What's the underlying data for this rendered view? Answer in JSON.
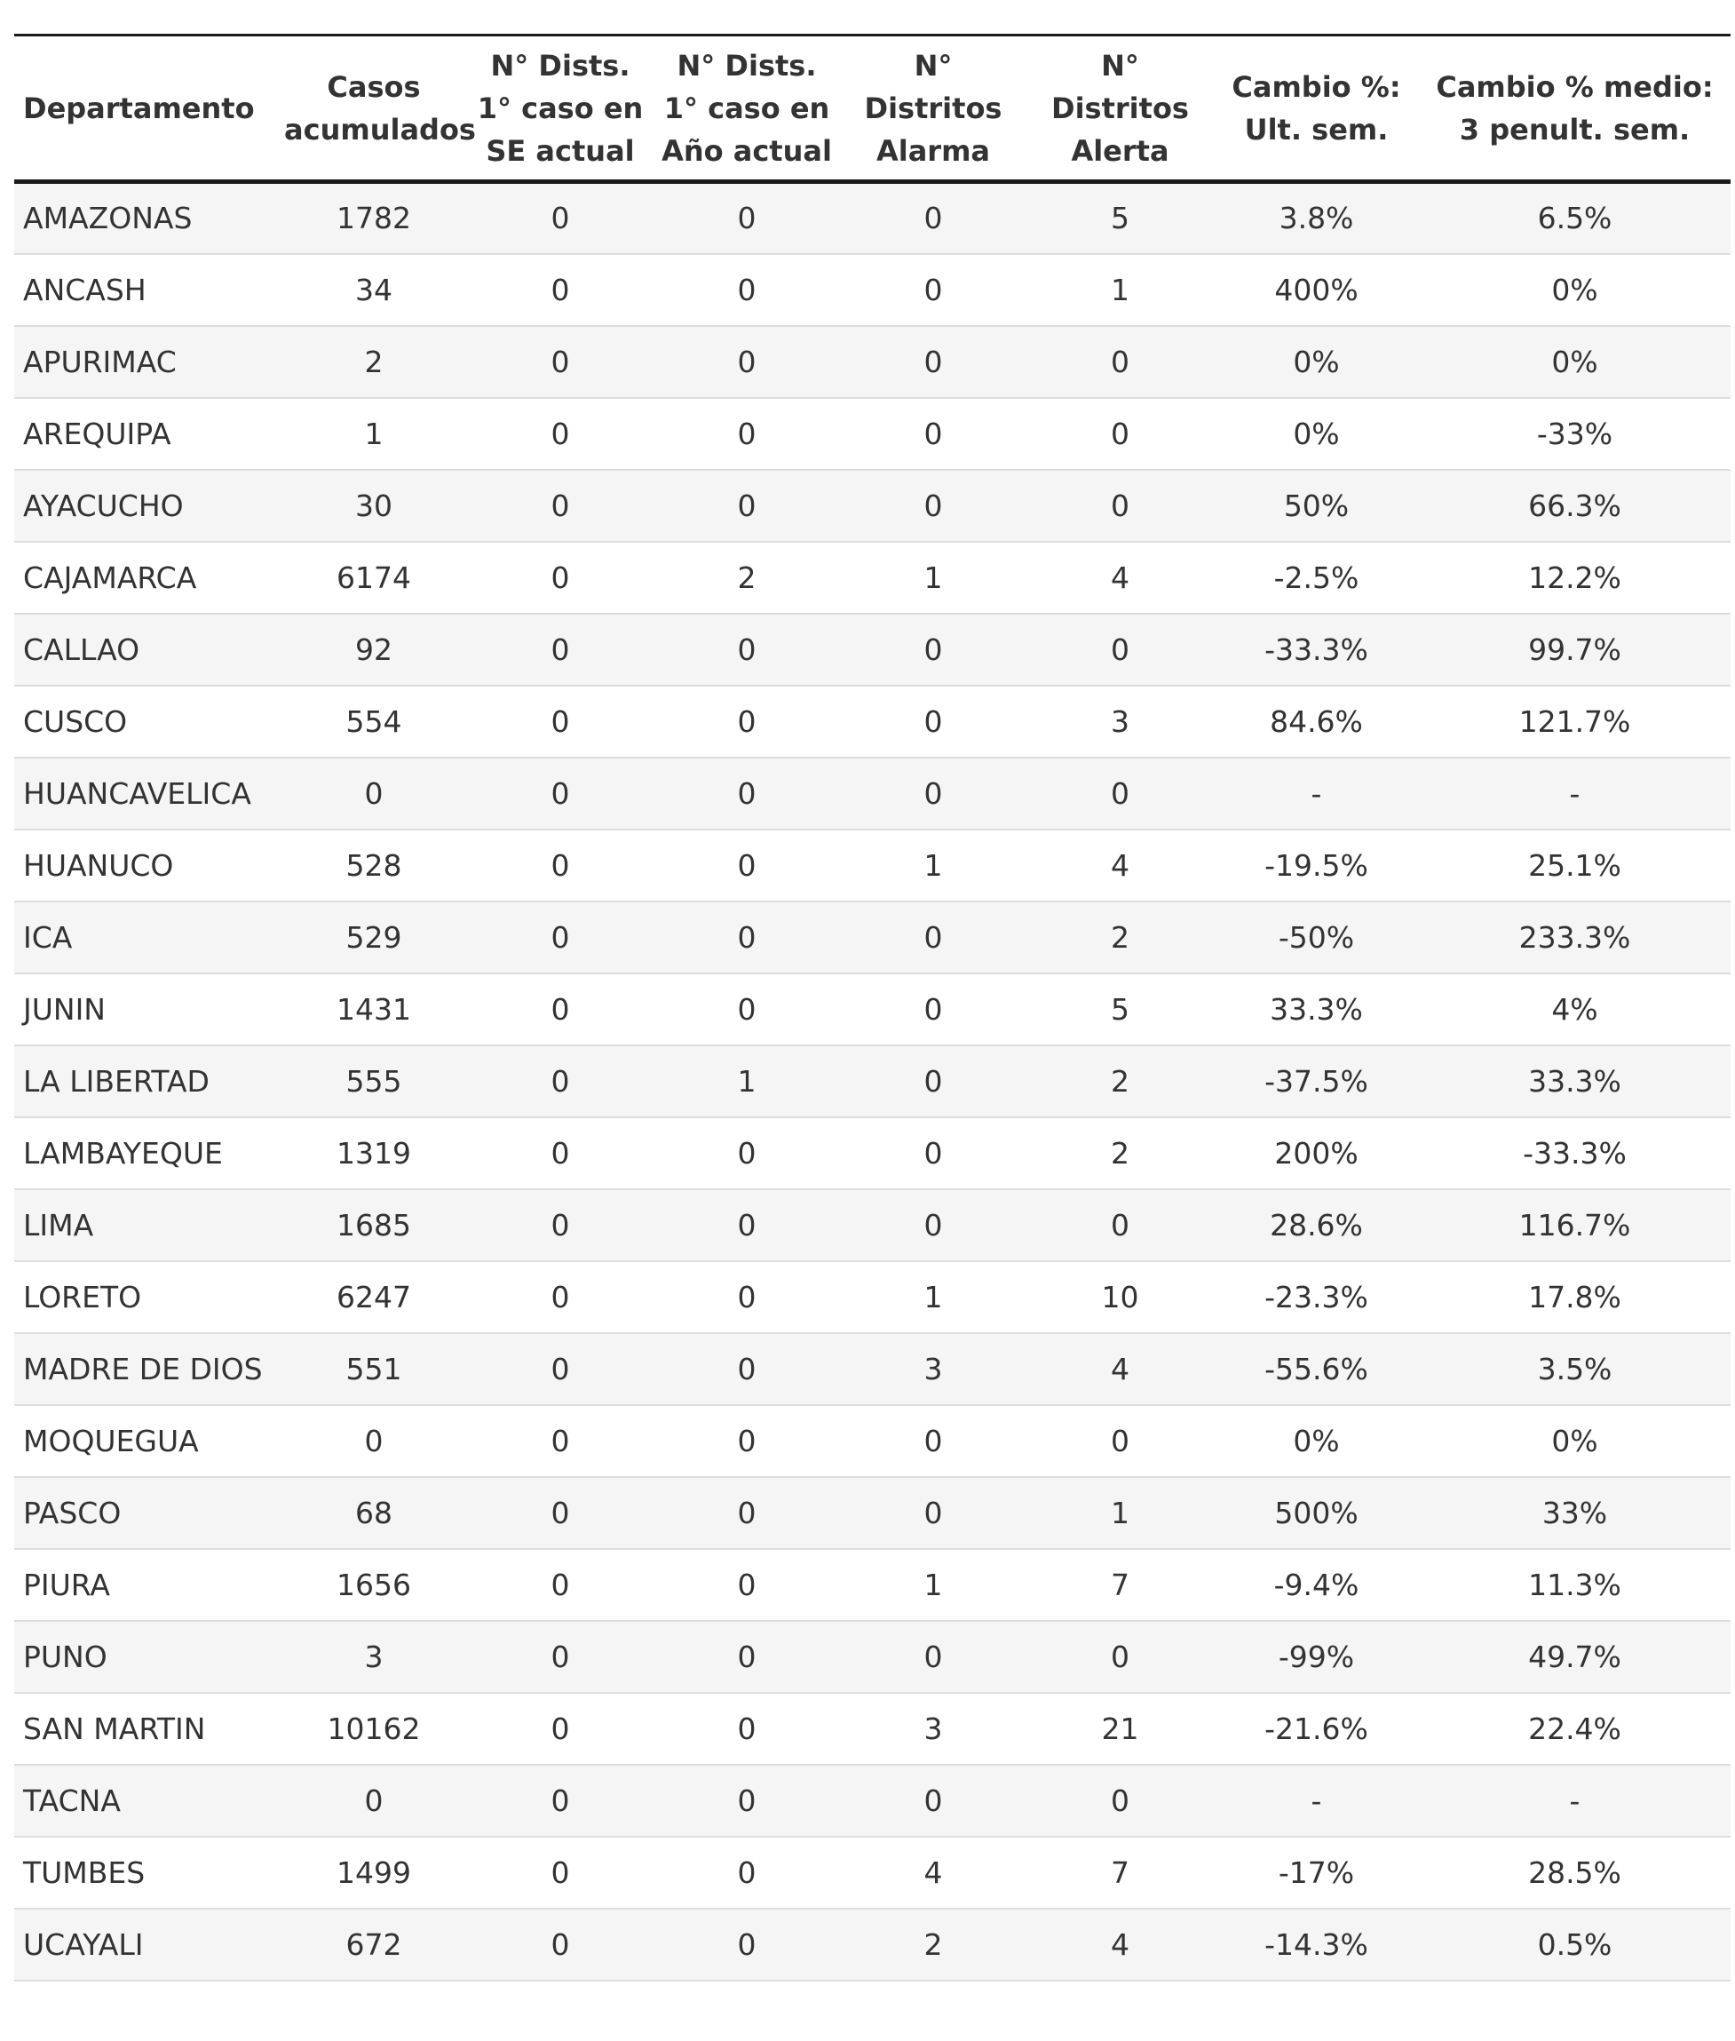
{
  "table": {
    "headers": [
      "Departamento",
      "Casos acumulados",
      "N° Dists. 1° caso en SE actual",
      "N° Dists. 1° caso en Año actual",
      "N° Distritos Alarma",
      "N° Distritos Alerta",
      "Cambio %: Ult. sem.",
      "Cambio % medio: 3 penult. sem."
    ],
    "rows": [
      [
        "AMAZONAS",
        "1782",
        "0",
        "0",
        "0",
        "5",
        "3.8%",
        "6.5%"
      ],
      [
        "ANCASH",
        "34",
        "0",
        "0",
        "0",
        "1",
        "400%",
        "0%"
      ],
      [
        "APURIMAC",
        "2",
        "0",
        "0",
        "0",
        "0",
        "0%",
        "0%"
      ],
      [
        "AREQUIPA",
        "1",
        "0",
        "0",
        "0",
        "0",
        "0%",
        "-33%"
      ],
      [
        "AYACUCHO",
        "30",
        "0",
        "0",
        "0",
        "0",
        "50%",
        "66.3%"
      ],
      [
        "CAJAMARCA",
        "6174",
        "0",
        "2",
        "1",
        "4",
        "-2.5%",
        "12.2%"
      ],
      [
        "CALLAO",
        "92",
        "0",
        "0",
        "0",
        "0",
        "-33.3%",
        "99.7%"
      ],
      [
        "CUSCO",
        "554",
        "0",
        "0",
        "0",
        "3",
        "84.6%",
        "121.7%"
      ],
      [
        "HUANCAVELICA",
        "0",
        "0",
        "0",
        "0",
        "0",
        "-",
        "-"
      ],
      [
        "HUANUCO",
        "528",
        "0",
        "0",
        "1",
        "4",
        "-19.5%",
        "25.1%"
      ],
      [
        "ICA",
        "529",
        "0",
        "0",
        "0",
        "2",
        "-50%",
        "233.3%"
      ],
      [
        "JUNIN",
        "1431",
        "0",
        "0",
        "0",
        "5",
        "33.3%",
        "4%"
      ],
      [
        "LA LIBERTAD",
        "555",
        "0",
        "1",
        "0",
        "2",
        "-37.5%",
        "33.3%"
      ],
      [
        "LAMBAYEQUE",
        "1319",
        "0",
        "0",
        "0",
        "2",
        "200%",
        "-33.3%"
      ],
      [
        "LIMA",
        "1685",
        "0",
        "0",
        "0",
        "0",
        "28.6%",
        "116.7%"
      ],
      [
        "LORETO",
        "6247",
        "0",
        "0",
        "1",
        "10",
        "-23.3%",
        "17.8%"
      ],
      [
        "MADRE DE DIOS",
        "551",
        "0",
        "0",
        "3",
        "4",
        "-55.6%",
        "3.5%"
      ],
      [
        "MOQUEGUA",
        "0",
        "0",
        "0",
        "0",
        "0",
        "0%",
        "0%"
      ],
      [
        "PASCO",
        "68",
        "0",
        "0",
        "0",
        "1",
        "500%",
        "33%"
      ],
      [
        "PIURA",
        "1656",
        "0",
        "0",
        "1",
        "7",
        "-9.4%",
        "11.3%"
      ],
      [
        "PUNO",
        "3",
        "0",
        "0",
        "0",
        "0",
        "-99%",
        "49.7%"
      ],
      [
        "SAN MARTIN",
        "10162",
        "0",
        "0",
        "3",
        "21",
        "-21.6%",
        "22.4%"
      ],
      [
        "TACNA",
        "0",
        "0",
        "0",
        "0",
        "0",
        "-",
        "-"
      ],
      [
        "TUMBES",
        "1499",
        "0",
        "0",
        "4",
        "7",
        "-17%",
        "28.5%"
      ],
      [
        "UCAYALI",
        "672",
        "0",
        "0",
        "2",
        "4",
        "-14.3%",
        "0.5%"
      ]
    ]
  }
}
